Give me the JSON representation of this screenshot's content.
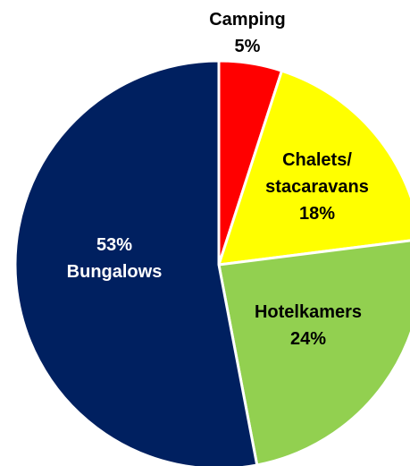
{
  "chart_data": {
    "type": "pie",
    "slices": [
      {
        "label": "Camping",
        "value": 5,
        "value_label": "5%",
        "color": "#ff0000",
        "label_color": "#000000",
        "value_first": false
      },
      {
        "label": "Chalets/\nstacaravans",
        "value": 18,
        "value_label": "18%",
        "color": "#ffff00",
        "label_color": "#000000",
        "value_first": false
      },
      {
        "label": "Hotelkamers",
        "value": 24,
        "value_label": "24%",
        "color": "#92d050",
        "label_color": "#000000",
        "value_first": false
      },
      {
        "label": "Bungalows",
        "value": 53,
        "value_label": "53%",
        "color": "#002060",
        "label_color": "#ffffff",
        "value_first": true
      }
    ],
    "start_angle_deg": 0,
    "direction": "clockwise",
    "legend": "none",
    "border_color": "#ffffff"
  }
}
